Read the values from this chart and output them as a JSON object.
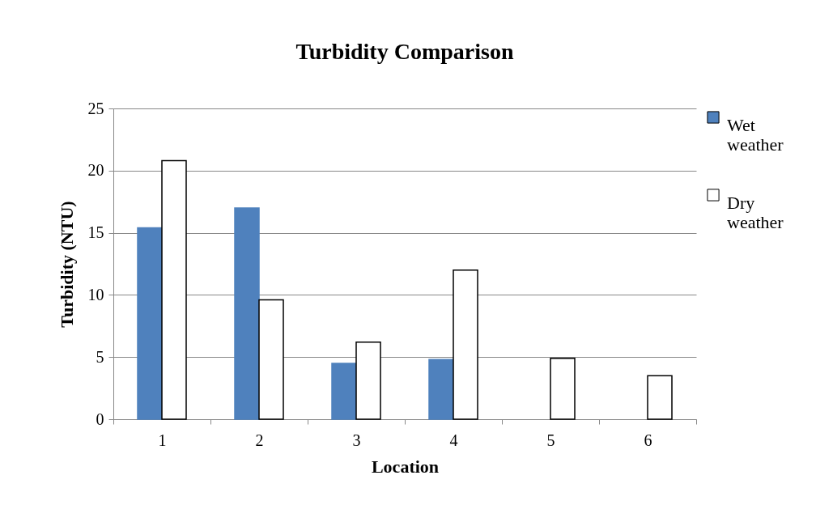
{
  "chart_data": {
    "type": "bar",
    "title": "Turbidity Comparison",
    "xlabel": "Location",
    "ylabel": "Turbidity (NTU)",
    "categories": [
      "1",
      "2",
      "3",
      "4",
      "5",
      "6"
    ],
    "series": [
      {
        "name": "Wet weather",
        "color": "#4f81bd",
        "values": [
          15.4,
          17.0,
          4.5,
          4.8,
          null,
          null
        ]
      },
      {
        "name": "Dry weather",
        "color": "#ffffff",
        "values": [
          20.8,
          9.6,
          6.2,
          12.0,
          4.9,
          3.5
        ]
      }
    ],
    "ylim": [
      0,
      25
    ],
    "yticks": [
      0,
      5,
      10,
      15,
      20,
      25
    ],
    "grid": "y",
    "legend": "right"
  }
}
